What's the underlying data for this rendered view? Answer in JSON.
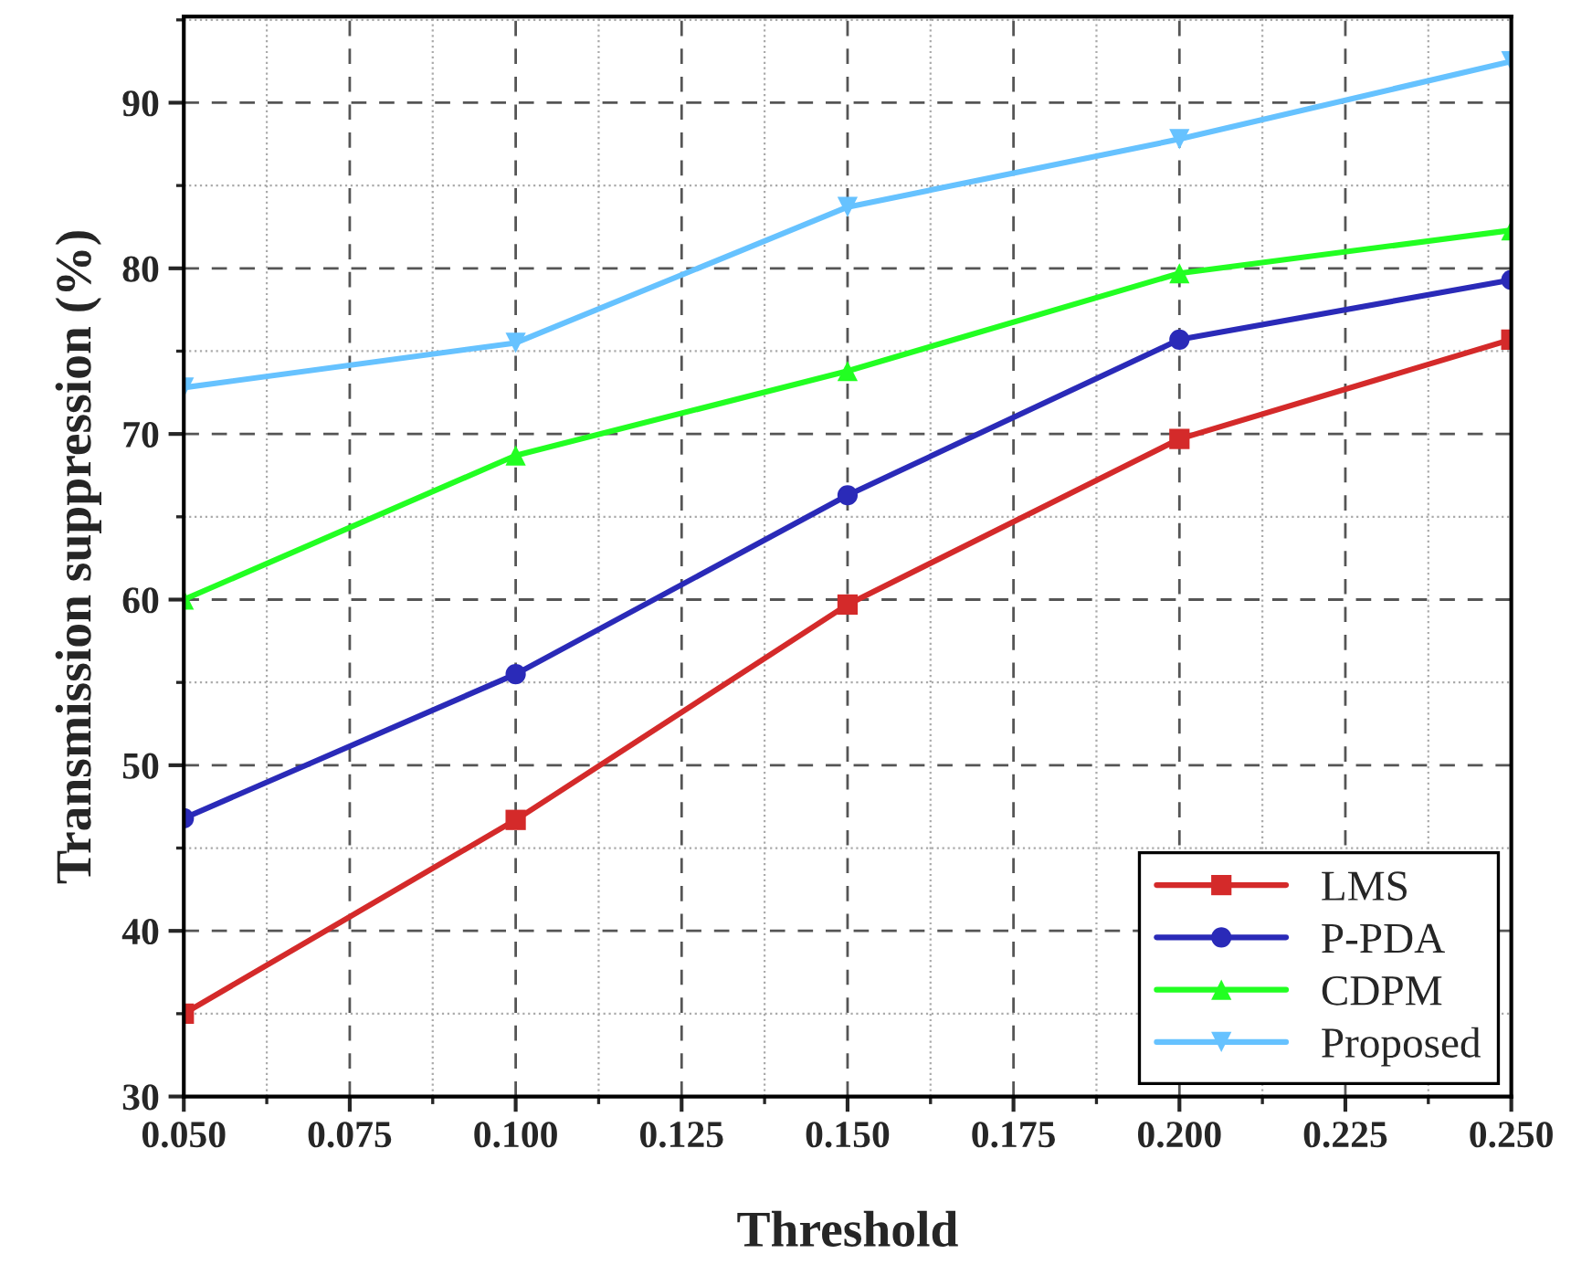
{
  "chart_data": {
    "type": "line",
    "xlabel": "Threshold",
    "ylabel": "Transmission suppression (%)",
    "x": [
      0.05,
      0.1,
      0.15,
      0.2,
      0.25
    ],
    "series": [
      {
        "name": "LMS",
        "color": "#d42a2a",
        "marker": "square",
        "values": [
          35.0,
          46.7,
          59.7,
          69.7,
          75.7
        ]
      },
      {
        "name": "P-PDA",
        "color": "#2a2ab8",
        "marker": "circle",
        "values": [
          46.8,
          55.5,
          66.3,
          75.7,
          79.3
        ]
      },
      {
        "name": "CDPM",
        "color": "#22ff22",
        "marker": "triangle",
        "values": [
          60.0,
          68.7,
          73.8,
          79.7,
          82.3
        ]
      },
      {
        "name": "Proposed",
        "color": "#66c2ff",
        "marker": "triangle_down",
        "values": [
          72.8,
          75.5,
          83.7,
          87.8,
          92.5
        ]
      }
    ],
    "xlim": [
      0.05,
      0.25
    ],
    "xticks": [
      {
        "value": 0.05,
        "label": "0.050"
      },
      {
        "value": 0.075,
        "label": "0.075"
      },
      {
        "value": 0.1,
        "label": "0.100"
      },
      {
        "value": 0.125,
        "label": "0.125"
      },
      {
        "value": 0.15,
        "label": "0.150"
      },
      {
        "value": 0.175,
        "label": "0.175"
      },
      {
        "value": 0.2,
        "label": "0.200"
      },
      {
        "value": 0.225,
        "label": "0.225"
      },
      {
        "value": 0.25,
        "label": "0.250"
      }
    ],
    "ylim": [
      30,
      95.2
    ],
    "yticks": [
      30,
      40,
      50,
      60,
      70,
      80,
      90
    ],
    "grid": true,
    "legend": "bottom right",
    "line_style": "solid"
  }
}
